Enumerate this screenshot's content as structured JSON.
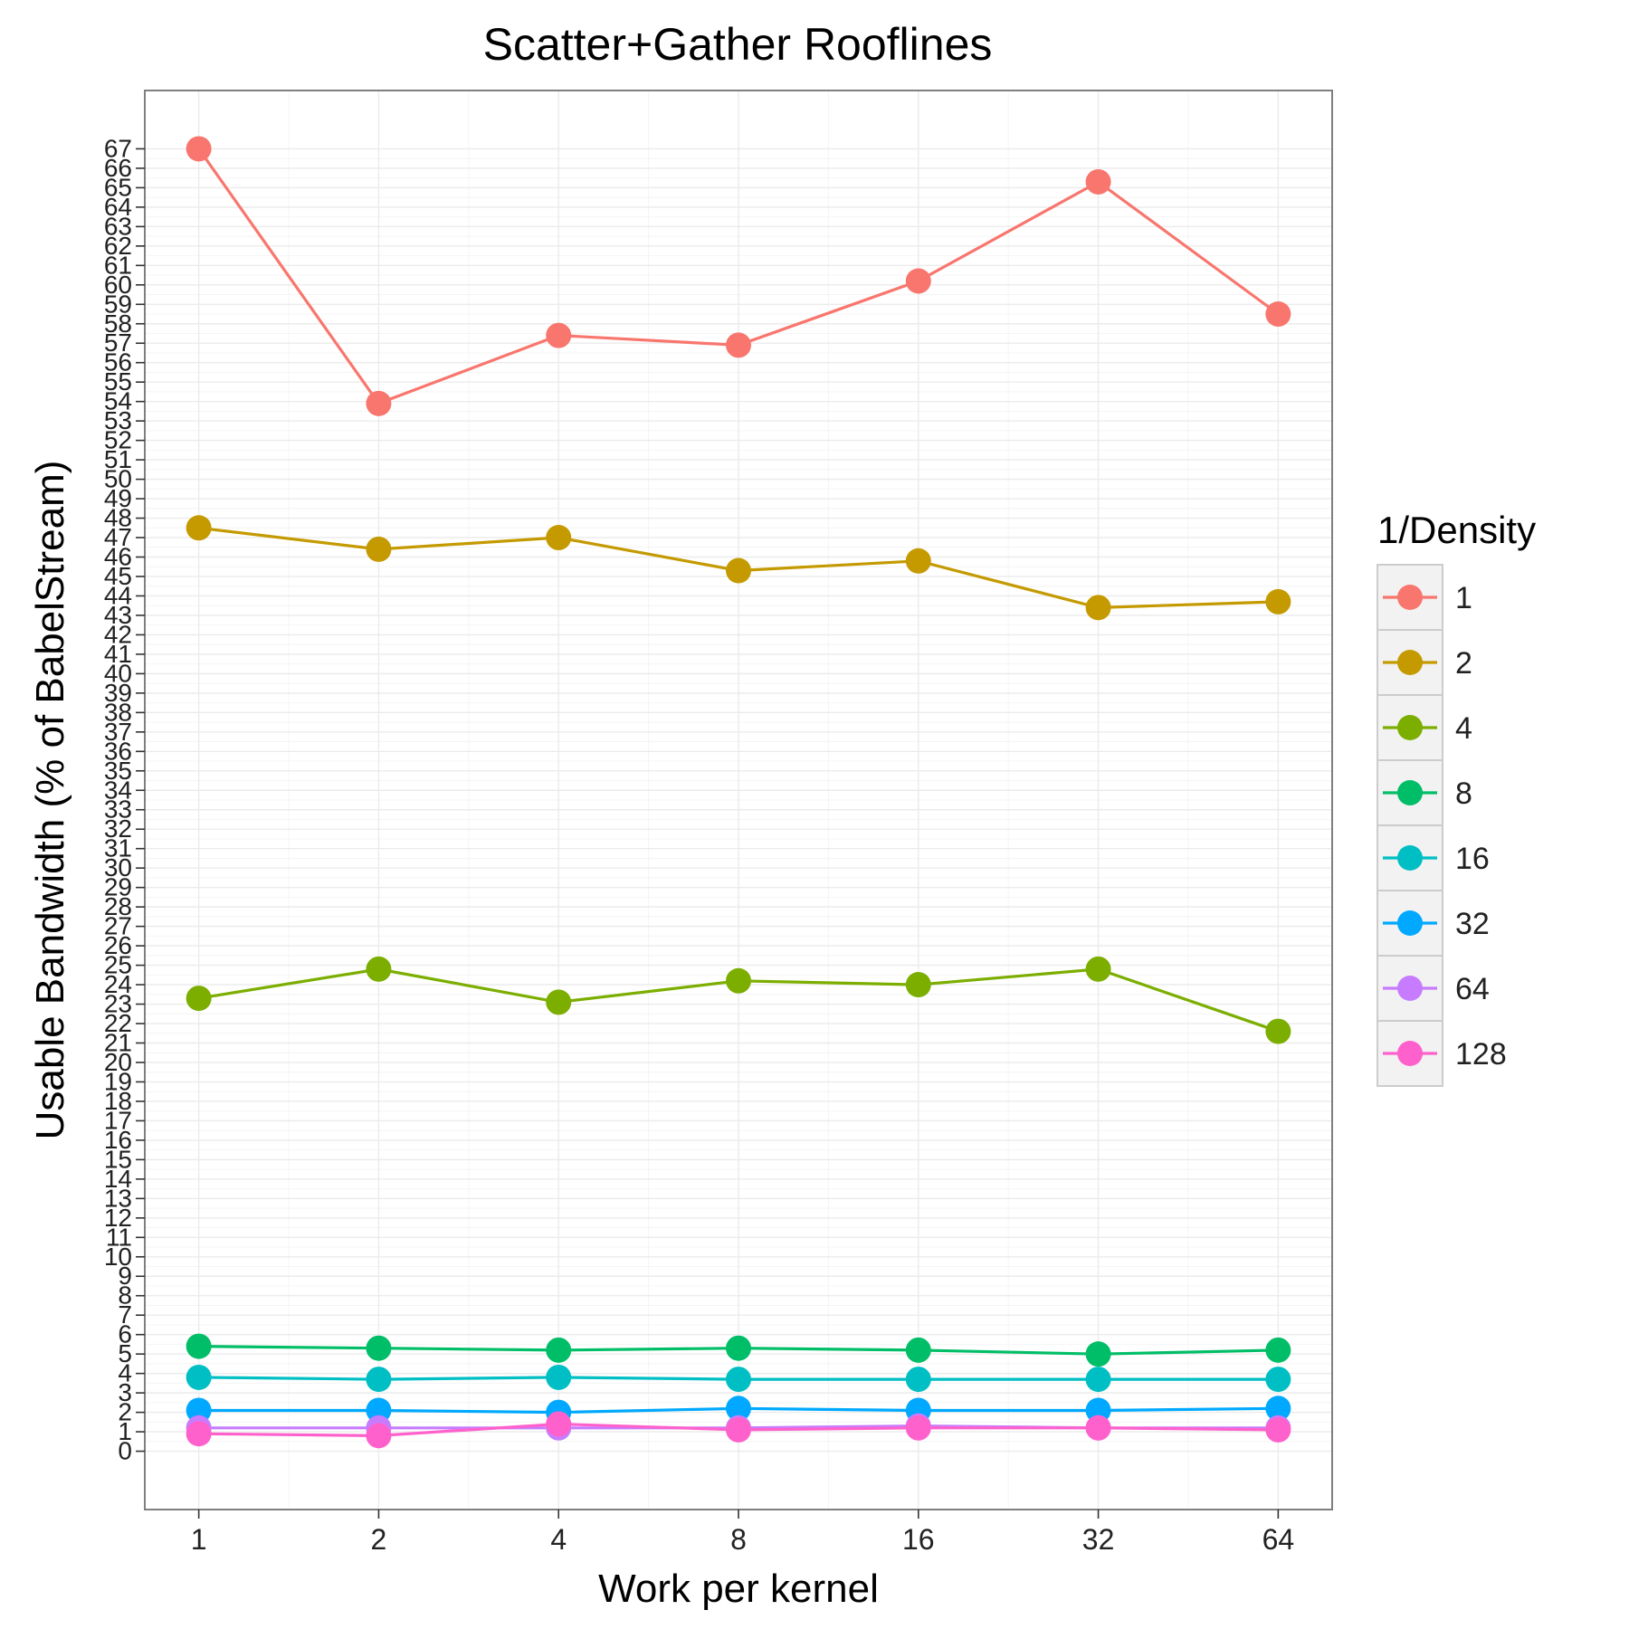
{
  "chart_data": {
    "type": "line",
    "title": "Scatter+Gather Rooflines",
    "xlabel": "Work per kernel",
    "ylabel": "Usable Bandwidth (% of BabelStream)",
    "x_scale": "log2",
    "categories": [
      "1",
      "2",
      "4",
      "8",
      "16",
      "32",
      "64"
    ],
    "x": [
      1,
      2,
      4,
      8,
      16,
      32,
      64
    ],
    "ylim": [
      -3,
      70
    ],
    "y_ticks": [
      0,
      1,
      2,
      3,
      4,
      5,
      6,
      7,
      8,
      9,
      10,
      11,
      12,
      13,
      14,
      15,
      16,
      17,
      18,
      19,
      20,
      21,
      22,
      23,
      24,
      25,
      26,
      27,
      28,
      29,
      30,
      31,
      32,
      33,
      34,
      35,
      36,
      37,
      38,
      39,
      40,
      41,
      42,
      43,
      44,
      45,
      46,
      47,
      48,
      49,
      50,
      51,
      52,
      53,
      54,
      55,
      56,
      57,
      58,
      59,
      60,
      61,
      62,
      63,
      64,
      65,
      66,
      67
    ],
    "grid": true,
    "legend": {
      "title": "1/Density",
      "position": "right"
    },
    "series": [
      {
        "name": "1",
        "color": "#F8766D",
        "values": [
          67.0,
          53.9,
          57.4,
          56.9,
          60.2,
          65.3,
          58.5
        ]
      },
      {
        "name": "2",
        "color": "#C49A00",
        "values": [
          47.5,
          46.4,
          47.0,
          45.3,
          45.8,
          43.4,
          43.7
        ]
      },
      {
        "name": "4",
        "color": "#7CAE00",
        "values": [
          23.3,
          24.8,
          23.1,
          24.2,
          24.0,
          24.8,
          21.6
        ]
      },
      {
        "name": "8",
        "color": "#00BE67",
        "values": [
          5.4,
          5.3,
          5.2,
          5.3,
          5.2,
          5.0,
          5.2
        ]
      },
      {
        "name": "16",
        "color": "#00BFC4",
        "values": [
          3.8,
          3.7,
          3.8,
          3.7,
          3.7,
          3.7,
          3.7
        ]
      },
      {
        "name": "32",
        "color": "#00A9FF",
        "values": [
          2.1,
          2.1,
          2.0,
          2.2,
          2.1,
          2.1,
          2.2
        ]
      },
      {
        "name": "64",
        "color": "#C77CFF",
        "values": [
          1.2,
          1.2,
          1.2,
          1.2,
          1.3,
          1.2,
          1.2
        ]
      },
      {
        "name": "128",
        "color": "#FF61CC",
        "values": [
          0.9,
          0.8,
          1.4,
          1.1,
          1.2,
          1.2,
          1.1
        ]
      }
    ]
  }
}
